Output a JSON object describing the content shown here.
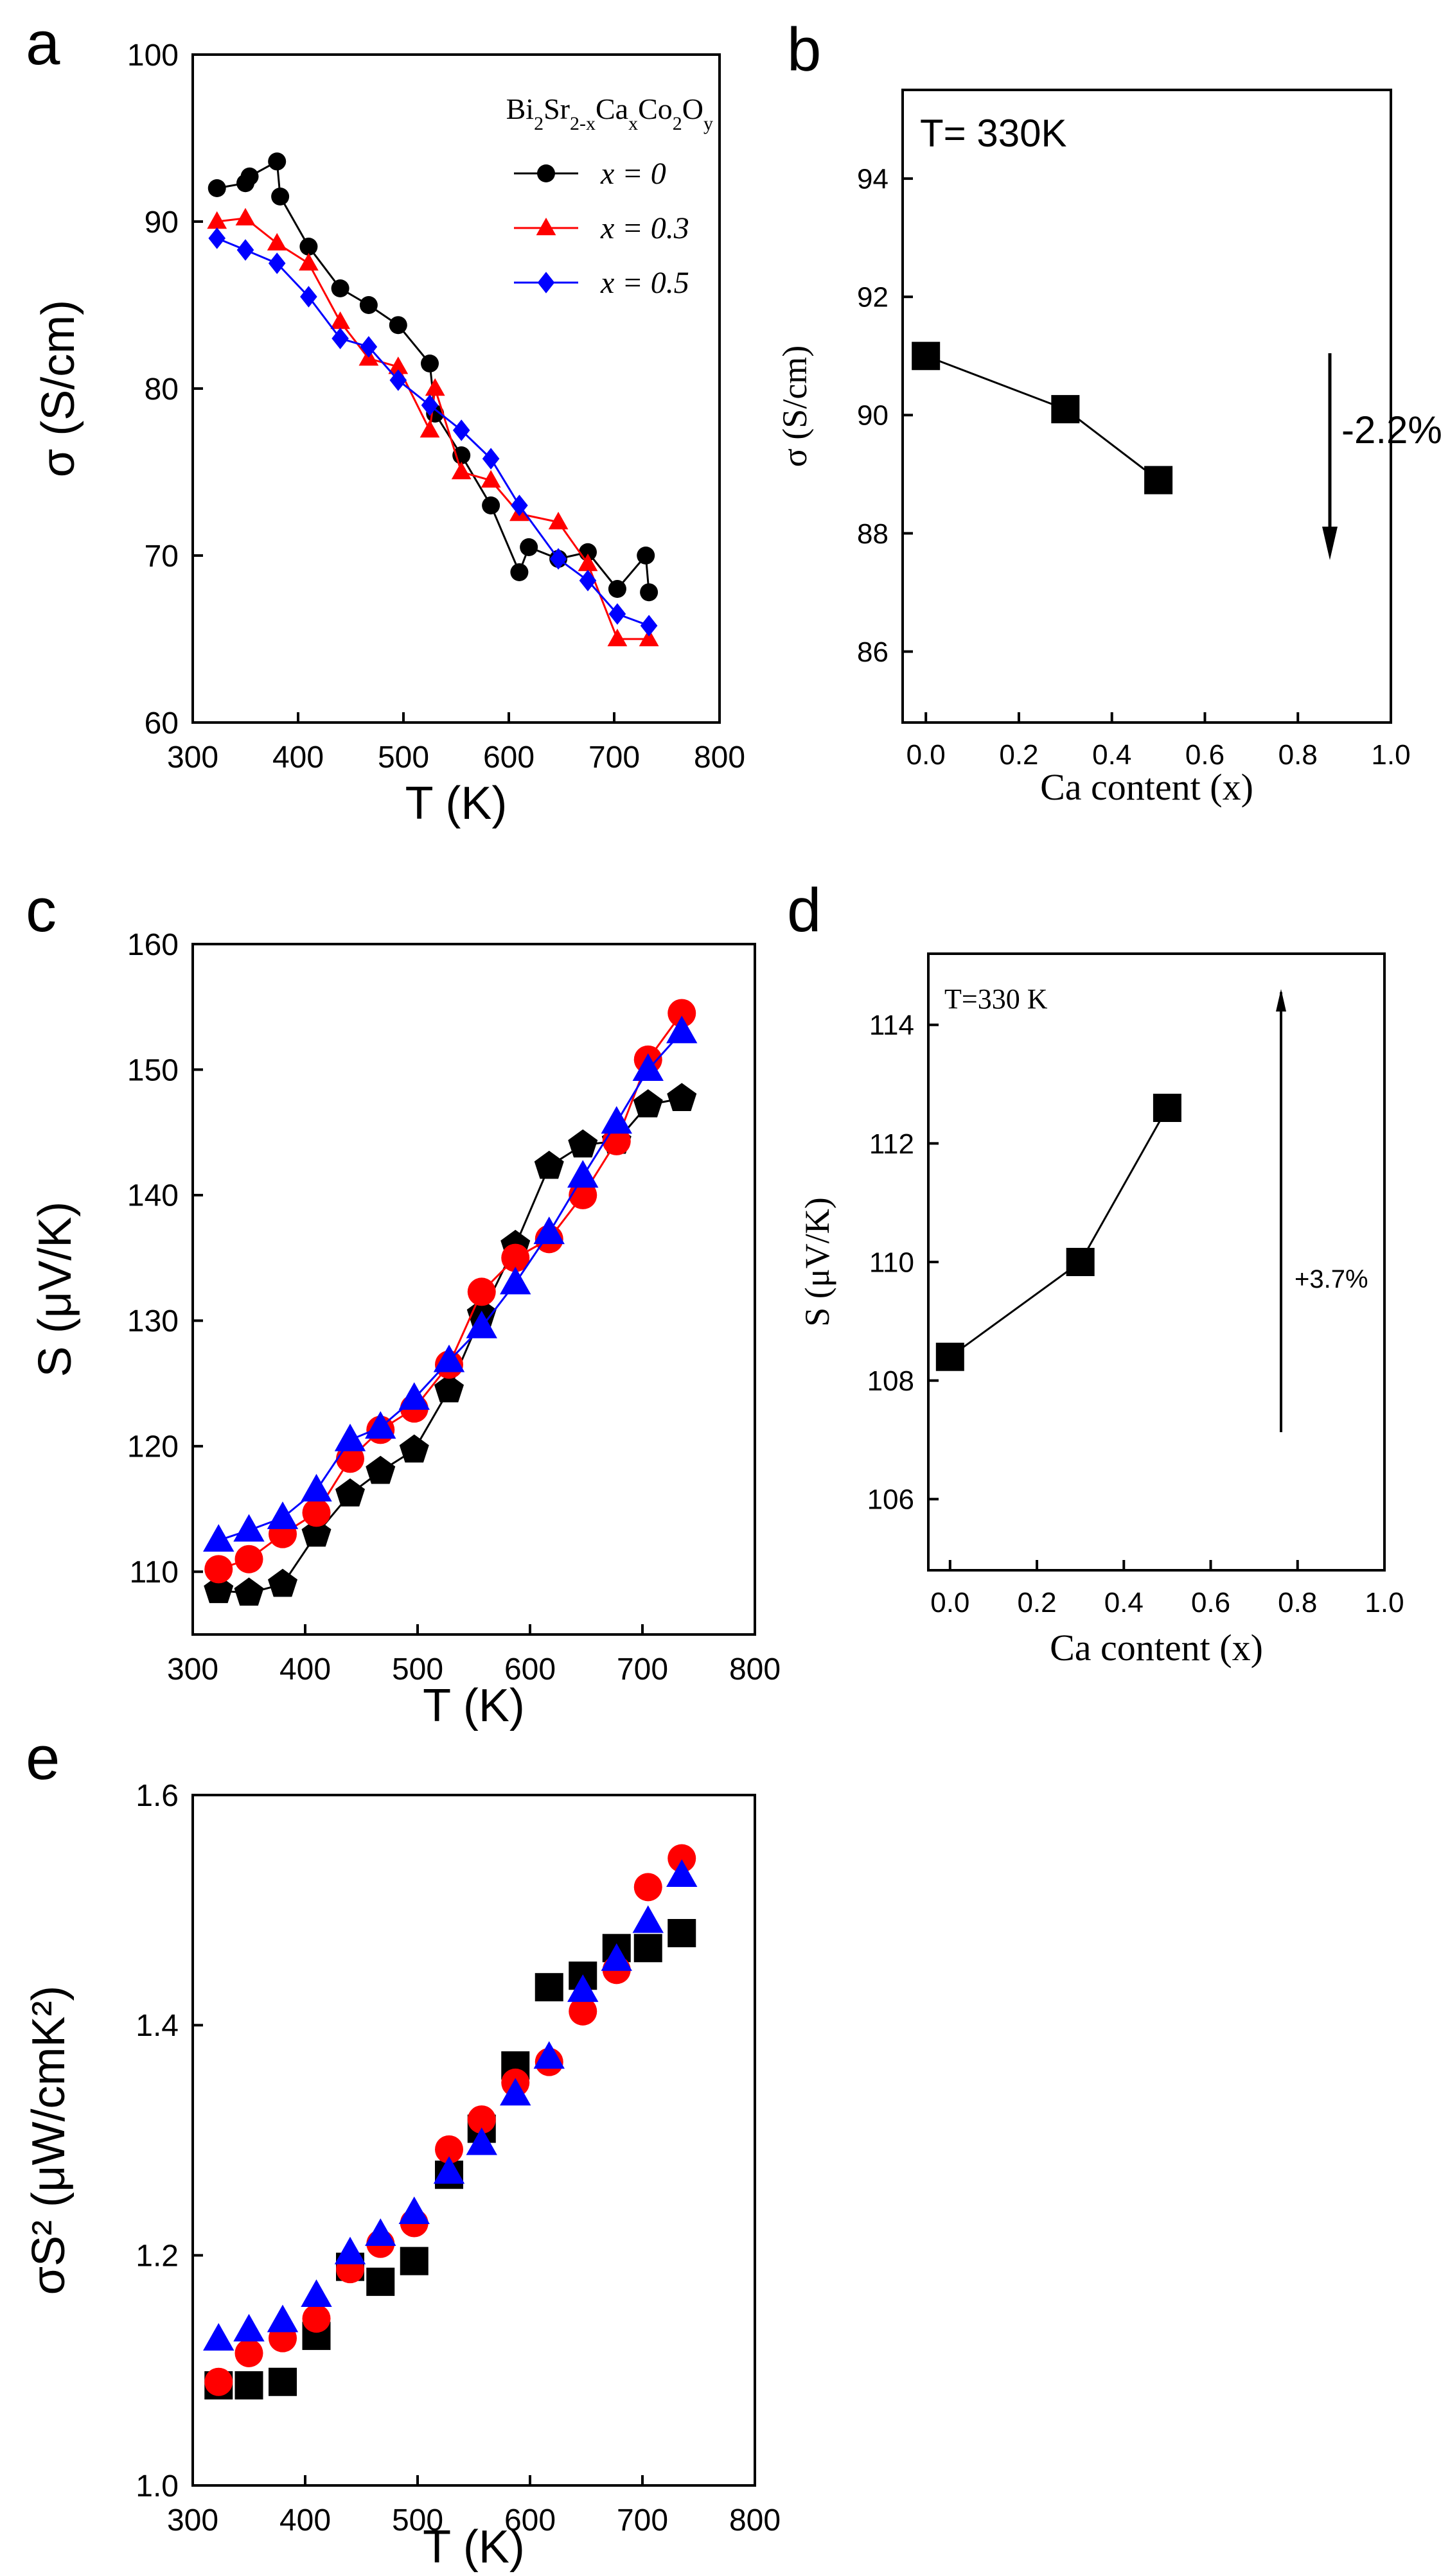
{
  "panel_labels": [
    "a",
    "b",
    "c",
    "d",
    "e"
  ],
  "chart_data": [
    {
      "panel": "a",
      "type": "line",
      "title": "",
      "xlabel": "T (K)",
      "ylabel": "σ (S/cm)",
      "xlim": [
        300,
        800
      ],
      "ylim": [
        60,
        100
      ],
      "xticks": [
        300,
        400,
        500,
        600,
        700,
        800
      ],
      "yticks": [
        60,
        70,
        80,
        90,
        100
      ],
      "legend_title": "Bi2Sr2-xCaxCo2Oy",
      "legend_position": "top-right",
      "series": [
        {
          "name": "x = 0",
          "color": "#000000",
          "marker": "circle",
          "x": [
            323,
            350,
            354,
            380,
            383,
            410,
            440,
            467,
            495,
            525,
            530,
            555,
            583,
            610,
            619,
            647,
            675,
            703,
            730,
            733
          ],
          "y": [
            92.0,
            92.3,
            92.7,
            93.6,
            91.5,
            88.5,
            86.0,
            85.0,
            83.8,
            81.5,
            78.5,
            76.0,
            73.0,
            69.0,
            70.5,
            69.8,
            70.2,
            68.0,
            70.0,
            67.8
          ]
        },
        {
          "name": "x = 0.3",
          "color": "#ff0000",
          "marker": "triangle",
          "x": [
            323,
            350,
            380,
            410,
            440,
            467,
            495,
            525,
            530,
            555,
            583,
            610,
            647,
            675,
            703,
            733
          ],
          "y": [
            90.0,
            90.2,
            88.7,
            87.5,
            84.0,
            81.8,
            81.3,
            77.5,
            80.0,
            75.0,
            74.5,
            72.5,
            72.0,
            69.5,
            65.0,
            65.0
          ]
        },
        {
          "name": "x = 0.5",
          "color": "#0000ff",
          "marker": "diamond",
          "x": [
            323,
            350,
            380,
            410,
            440,
            467,
            495,
            525,
            555,
            583,
            610,
            647,
            675,
            703,
            733
          ],
          "y": [
            89.0,
            88.3,
            87.5,
            85.5,
            83.0,
            82.5,
            80.5,
            79.0,
            77.5,
            75.8,
            73.0,
            69.8,
            68.5,
            66.5,
            65.8
          ]
        }
      ]
    },
    {
      "panel": "b",
      "type": "line",
      "title": "",
      "xlabel": "Ca content (x)",
      "ylabel": "σ (S/cm)",
      "annotation": "T= 330K",
      "change_label": "-2.2%",
      "xlim": [
        -0.05,
        1.0
      ],
      "ylim": [
        84.8,
        95.5
      ],
      "xticks": [
        0.0,
        0.2,
        0.4,
        0.6,
        0.8,
        1.0
      ],
      "xticklabels": [
        "0.0",
        "0.2",
        "0.4",
        "0.6",
        "0.8",
        "1.0"
      ],
      "yticks": [
        86,
        88,
        90,
        92,
        94
      ],
      "series": [
        {
          "name": "σ",
          "color": "#000000",
          "marker": "square",
          "x": [
            0.0,
            0.3,
            0.5
          ],
          "y": [
            91.0,
            90.1,
            88.9
          ]
        }
      ]
    },
    {
      "panel": "c",
      "type": "line",
      "title": "",
      "xlabel": "T (K)",
      "ylabel": "S (μV/K)",
      "xlim": [
        300,
        800
      ],
      "ylim": [
        105,
        160
      ],
      "xticks": [
        300,
        400,
        500,
        600,
        700,
        800
      ],
      "yticks": [
        110,
        120,
        130,
        140,
        150,
        160
      ],
      "series": [
        {
          "name": "x = 0",
          "color": "#000000",
          "marker": "pentagon",
          "x": [
            323,
            350,
            380,
            410,
            440,
            467,
            497,
            528,
            557,
            587,
            617,
            647,
            677,
            705,
            735
          ],
          "y": [
            108.5,
            108.3,
            109.0,
            113.0,
            116.2,
            118.0,
            119.7,
            124.5,
            130.5,
            136.0,
            142.3,
            144.0,
            144.3,
            147.2,
            147.7
          ]
        },
        {
          "name": "x = 0.3",
          "color": "#ff0000",
          "marker": "circle",
          "x": [
            323,
            350,
            380,
            410,
            440,
            467,
            497,
            528,
            557,
            587,
            617,
            647,
            677,
            705,
            735
          ],
          "y": [
            110.2,
            111.0,
            113.0,
            114.7,
            119.0,
            121.3,
            123.0,
            126.5,
            132.3,
            135.0,
            136.5,
            140.0,
            144.3,
            150.8,
            154.5
          ]
        },
        {
          "name": "x = 0.5",
          "color": "#0000ff",
          "marker": "triangle",
          "x": [
            323,
            350,
            380,
            410,
            440,
            467,
            497,
            528,
            557,
            587,
            617,
            647,
            677,
            705,
            735
          ],
          "y": [
            112.5,
            113.3,
            114.3,
            116.5,
            120.5,
            121.5,
            123.8,
            126.8,
            129.5,
            133.0,
            137.0,
            141.5,
            145.8,
            150.0,
            153.0
          ]
        }
      ]
    },
    {
      "panel": "d",
      "type": "line",
      "title": "",
      "xlabel": "Ca content (x)",
      "ylabel": "S (μV/K)",
      "annotation": "T=330 K",
      "change_label": "+3.7%",
      "xlim": [
        -0.05,
        1.0
      ],
      "ylim": [
        104.8,
        115.2
      ],
      "xticks": [
        0.0,
        0.2,
        0.4,
        0.6,
        0.8,
        1.0
      ],
      "xticklabels": [
        "0.0",
        "0.2",
        "0.4",
        "0.6",
        "0.8",
        "1.0"
      ],
      "yticks": [
        106,
        108,
        110,
        112,
        114
      ],
      "series": [
        {
          "name": "S",
          "color": "#000000",
          "marker": "square",
          "x": [
            0.0,
            0.3,
            0.5
          ],
          "y": [
            108.4,
            110.0,
            112.6
          ]
        }
      ]
    },
    {
      "panel": "e",
      "type": "scatter",
      "title": "",
      "xlabel": "T (K)",
      "ylabel": "σS² (μW/cmK²)",
      "xlim": [
        300,
        800
      ],
      "ylim": [
        1.0,
        1.6
      ],
      "xticks": [
        300,
        400,
        500,
        600,
        700,
        800
      ],
      "yticks": [
        1.0,
        1.2,
        1.4,
        1.6
      ],
      "yticklabels": [
        "1.0",
        "1.2",
        "1.4",
        "1.6"
      ],
      "series": [
        {
          "name": "x = 0",
          "color": "#000000",
          "marker": "square",
          "x": [
            323,
            350,
            380,
            410,
            440,
            467,
            497,
            528,
            557,
            587,
            617,
            647,
            677,
            705,
            735
          ],
          "y": [
            1.087,
            1.087,
            1.09,
            1.13,
            1.19,
            1.177,
            1.195,
            1.27,
            1.31,
            1.365,
            1.433,
            1.443,
            1.467,
            1.467,
            1.48
          ]
        },
        {
          "name": "x = 0.3",
          "color": "#ff0000",
          "marker": "circle",
          "x": [
            323,
            350,
            380,
            410,
            440,
            467,
            497,
            528,
            557,
            587,
            617,
            647,
            677,
            705,
            735
          ],
          "y": [
            1.09,
            1.115,
            1.128,
            1.145,
            1.188,
            1.21,
            1.228,
            1.292,
            1.318,
            1.35,
            1.368,
            1.412,
            1.448,
            1.52,
            1.545
          ]
        },
        {
          "name": "x = 0.5",
          "color": "#0000ff",
          "marker": "triangle",
          "x": [
            323,
            350,
            380,
            410,
            440,
            467,
            497,
            528,
            557,
            587,
            617,
            647,
            677,
            705,
            735
          ],
          "y": [
            1.127,
            1.135,
            1.143,
            1.165,
            1.202,
            1.218,
            1.237,
            1.272,
            1.297,
            1.34,
            1.372,
            1.43,
            1.457,
            1.49,
            1.53
          ]
        }
      ]
    }
  ]
}
